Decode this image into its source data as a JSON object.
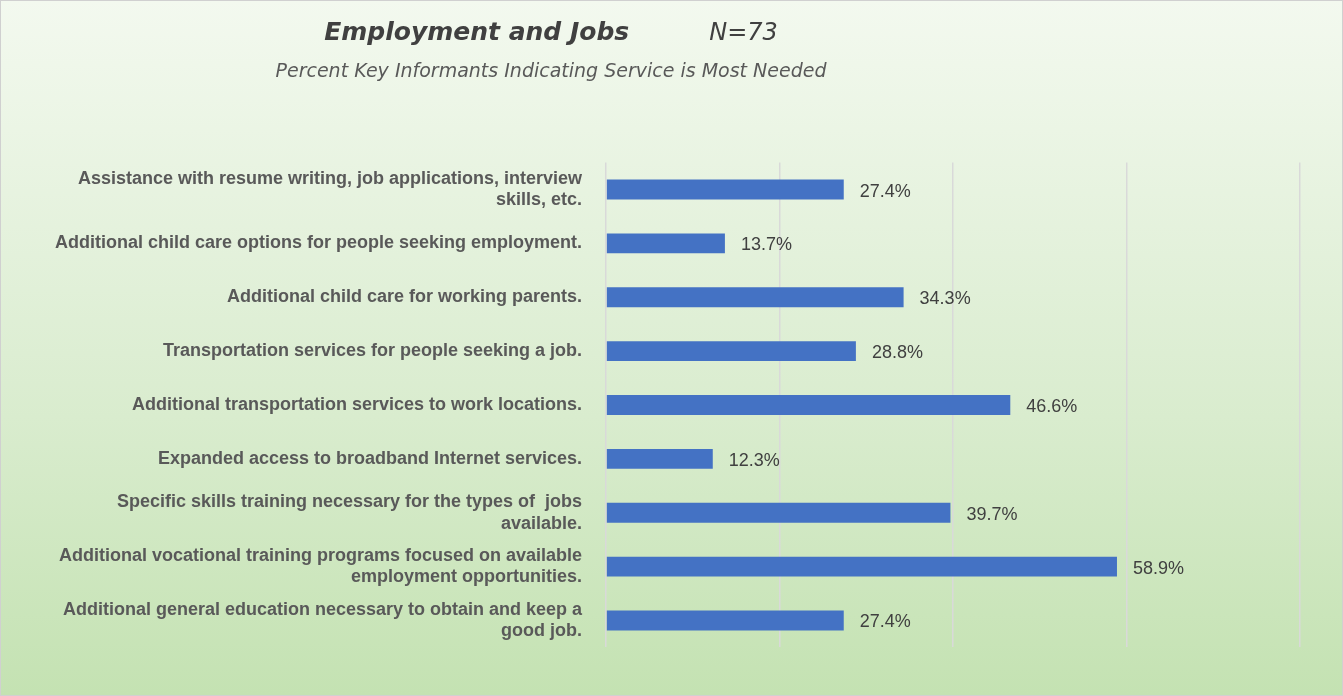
{
  "chart_data": {
    "type": "bar",
    "orientation": "horizontal",
    "title": "Employment and Jobs",
    "subtitle": "Percent Key Informants Indicating Service is Most Needed",
    "annotations": [
      "N=73"
    ],
    "categories": [
      "Assistance with resume writing, job applications, interview skills, etc.",
      "Additional child care options for people seeking employment.",
      "Additional child care for working parents.",
      "Transportation services for people seeking a job.",
      "Additional transportation services to work locations.",
      "Expanded access to broadband Internet services.",
      "Specific skills training necessary for the types of  jobs available.",
      "Additional vocational training programs focused on available employment opportunities.",
      "Additional general education necessary to obtain and keep a good job."
    ],
    "values": [
      27.4,
      13.7,
      34.3,
      28.8,
      46.6,
      12.3,
      39.7,
      58.9,
      27.4
    ],
    "value_labels": [
      "27.4%",
      "13.7%",
      "34.3%",
      "28.8%",
      "46.6%",
      "12.3%",
      "39.7%",
      "58.9%",
      "27.4%"
    ],
    "color": "#4472c4",
    "xlim": [
      0,
      80
    ],
    "xticks": [
      {
        "value": 0,
        "label": null
      },
      {
        "value": 20,
        "label": null
      },
      {
        "value": 40,
        "label": null
      },
      {
        "value": 60,
        "label": null
      },
      {
        "value": 80,
        "label": null
      }
    ],
    "grid": "x",
    "tick_labels": "y",
    "legend": false
  }
}
